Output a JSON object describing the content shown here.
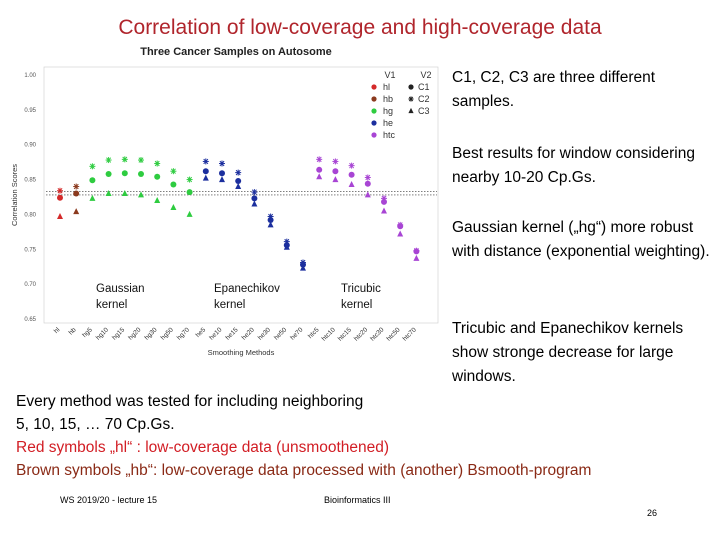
{
  "slide": {
    "title": "Correlation of low-coverage and high-coverage data",
    "notes": [
      "C1, C2, C3 are three different samples.",
      "Best results for window considering nearby 10-20 Cp.Gs.",
      "Gaussian kernel („hg“) more robust with distance (exponential weighting).",
      "Tricubic and Epanechikov kernels show stronge decrease for large windows."
    ],
    "body": {
      "line1": "Every method was tested for including neighboring",
      "line2": "5, 10, 15, … 70 Cp.Gs.",
      "line3": "Red symbols „hl“ : low-coverage data (unsmoothened)",
      "line4": "Brown symbols „hb“: low-coverage data processed with (another) Bsmooth-program"
    },
    "footer": {
      "left": "WS 2019/20 - lecture 15",
      "center": "Bioinformatics III",
      "page": "26"
    }
  },
  "chart_data": {
    "type": "scatter",
    "title": "Three Cancer Samples on Autosome",
    "xlabel": "Smoothing Methods",
    "ylabel": "Correlation Scores",
    "ylim": [
      0.65,
      1.0
    ],
    "yticks": [
      "1.00",
      "0.95",
      "0.90",
      "0.85",
      "0.80",
      "0.75",
      "0.70",
      "0.65"
    ],
    "yticks_values": [
      1.0,
      0.95,
      0.9,
      0.85,
      0.8,
      0.75,
      0.7,
      0.65
    ],
    "categories": [
      "hl",
      "hb",
      "hg5",
      "hg10",
      "hg15",
      "hg20",
      "hg30",
      "hg50",
      "hg70",
      "he5",
      "he10",
      "he15",
      "he20",
      "he30",
      "he50",
      "he70",
      "htc5",
      "htc10",
      "htc15",
      "htc20",
      "htc30",
      "htc50",
      "htc70"
    ],
    "reference_lines": [
      0.833,
      0.828
    ],
    "colors": {
      "hl": "#d42a2a",
      "hb": "#8b3a1e",
      "hg": "#2ecc40",
      "he": "#1c2f9e",
      "htc": "#a845d4"
    },
    "legend": {
      "col1_title": "V1",
      "col2_title": "V2",
      "methods": [
        "hl",
        "hb",
        "hg",
        "he",
        "htc"
      ],
      "samples": [
        "C1",
        "C2",
        "C3"
      ]
    },
    "group_labels": [
      {
        "text": "Gaussian kernel"
      },
      {
        "text": "Epanechikov kernel"
      },
      {
        "text": "Tricubic kernel"
      }
    ],
    "series": [
      {
        "name": "C1",
        "marker": "circle",
        "values": [
          0.824,
          0.83,
          0.849,
          0.858,
          0.859,
          0.858,
          0.854,
          0.843,
          0.832,
          0.862,
          0.859,
          0.848,
          0.823,
          0.792,
          0.756,
          0.728,
          0.864,
          0.862,
          0.857,
          0.844,
          0.818,
          0.783,
          0.747
        ]
      },
      {
        "name": "C2",
        "marker": "asterisk",
        "values": [
          0.834,
          0.84,
          0.869,
          0.878,
          0.879,
          0.878,
          0.873,
          0.862,
          0.85,
          0.876,
          0.873,
          0.86,
          0.832,
          0.797,
          0.761,
          0.731,
          0.879,
          0.876,
          0.87,
          0.853,
          0.823,
          0.785,
          0.748
        ]
      },
      {
        "name": "C3",
        "marker": "triangle",
        "values": [
          0.797,
          0.804,
          0.823,
          0.83,
          0.83,
          0.828,
          0.82,
          0.81,
          0.8,
          0.852,
          0.85,
          0.84,
          0.815,
          0.785,
          0.753,
          0.723,
          0.854,
          0.85,
          0.843,
          0.828,
          0.805,
          0.772,
          0.737
        ]
      }
    ]
  }
}
